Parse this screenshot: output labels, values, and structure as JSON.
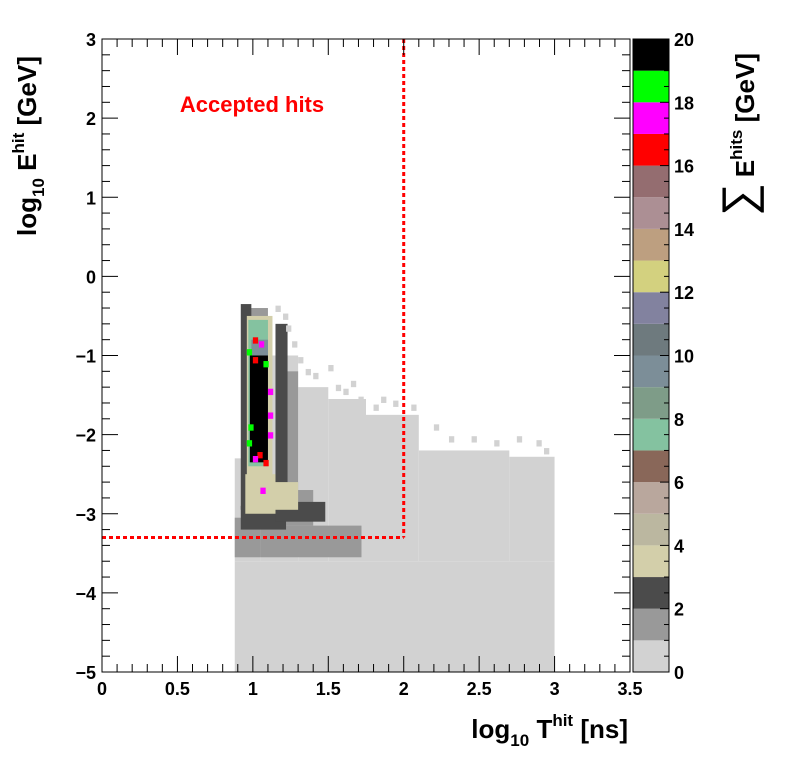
{
  "chart_data": {
    "type": "heatmap",
    "title": "",
    "annotation": "Accepted hits",
    "xlabel": {
      "base": "log",
      "sub": "10",
      "var": " T",
      "sup": "hit",
      "unit": " [ns]"
    },
    "ylabel": {
      "base": "log",
      "sub": "10",
      "var": " E",
      "sup": "hit",
      "unit": " [GeV]"
    },
    "zlabel": {
      "sym": "∑",
      "var": "E",
      "sup": "hits",
      "unit": " [GeV]"
    },
    "xlim": [
      0,
      3.5
    ],
    "ylim": [
      -5,
      3
    ],
    "zlim": [
      0,
      20
    ],
    "x_ticks": [
      "0",
      "0.5",
      "1",
      "1.5",
      "2",
      "2.5",
      "3",
      "3.5"
    ],
    "x_tick_values": [
      0,
      0.5,
      1,
      1.5,
      2,
      2.5,
      3,
      3.5
    ],
    "y_ticks": [
      "−5",
      "−4",
      "−3",
      "−2",
      "−1",
      "0",
      "1",
      "2",
      "3"
    ],
    "y_tick_values": [
      -5,
      -4,
      -3,
      -2,
      -1,
      0,
      1,
      2,
      3
    ],
    "z_ticks": [
      "0",
      "2",
      "4",
      "6",
      "8",
      "10",
      "12",
      "14",
      "16",
      "18",
      "20"
    ],
    "z_tick_values": [
      0,
      2,
      4,
      6,
      8,
      10,
      12,
      14,
      16,
      18,
      20
    ],
    "palette": [
      "#d2d2d2",
      "#999999",
      "#4b4b4b",
      "#d3cfaa",
      "#bbb7a0",
      "#b9a79d",
      "#896759",
      "#84c2a0",
      "#7e9c88",
      "#7c8e98",
      "#6e7a7e",
      "#82829f",
      "#d3d17f",
      "#bd9f80",
      "#ac8f94",
      "#946d70",
      "#ff0000",
      "#ff00ff",
      "#00ff00",
      "#000000"
    ],
    "acceptance_cut": {
      "t_max": 2.0,
      "e_min": -3.3,
      "color": "#ff0000"
    },
    "bin_width": {
      "x": 0.035,
      "y": 0.08
    },
    "blocks": [
      {
        "x": [
          0.88,
          3.0
        ],
        "y": [
          -5.0,
          -3.6
        ],
        "z": 0.4
      },
      {
        "x": [
          0.88,
          1.05
        ],
        "y": [
          -3.6,
          -2.3
        ],
        "z": 0.4
      },
      {
        "x": [
          1.05,
          1.3
        ],
        "y": [
          -3.6,
          -1.0
        ],
        "z": 0.4
      },
      {
        "x": [
          1.3,
          1.5
        ],
        "y": [
          -3.6,
          -1.4
        ],
        "z": 0.4
      },
      {
        "x": [
          1.5,
          1.75
        ],
        "y": [
          -3.6,
          -1.55
        ],
        "z": 0.4
      },
      {
        "x": [
          1.75,
          2.1
        ],
        "y": [
          -3.6,
          -1.75
        ],
        "z": 0.4
      },
      {
        "x": [
          2.1,
          2.7
        ],
        "y": [
          -3.6,
          -2.2
        ],
        "z": 0.4
      },
      {
        "x": [
          2.7,
          3.0
        ],
        "y": [
          -3.6,
          -2.28
        ],
        "z": 0.4
      },
      {
        "x": [
          0.88,
          1.05
        ],
        "y": [
          -3.55,
          -3.05
        ],
        "z": 1.4
      },
      {
        "x": [
          1.05,
          1.72
        ],
        "y": [
          -3.55,
          -3.15
        ],
        "z": 1.4
      },
      {
        "x": [
          1.2,
          1.4
        ],
        "y": [
          -3.15,
          -2.7
        ],
        "z": 1.4
      },
      {
        "x": [
          1.2,
          1.3
        ],
        "y": [
          -2.7,
          -1.2
        ],
        "z": 1.4
      },
      {
        "x": [
          0.95,
          1.1
        ],
        "y": [
          -0.95,
          -0.4
        ],
        "z": 1.4
      },
      {
        "x": [
          0.92,
          1.22
        ],
        "y": [
          -3.2,
          -2.9
        ],
        "z": 2.6
      },
      {
        "x": [
          1.15,
          1.48
        ],
        "y": [
          -3.1,
          -2.85
        ],
        "z": 2.6
      },
      {
        "x": [
          0.92,
          0.99
        ],
        "y": [
          -2.95,
          -0.35
        ],
        "z": 2.6
      },
      {
        "x": [
          1.15,
          1.23
        ],
        "y": [
          -2.7,
          -0.6
        ],
        "z": 2.6
      },
      {
        "x": [
          0.95,
          1.15
        ],
        "y": [
          -3.0,
          -2.5
        ],
        "z": 3.6
      },
      {
        "x": [
          1.1,
          1.3
        ],
        "y": [
          -2.95,
          -2.6
        ],
        "z": 3.6
      },
      {
        "x": [
          0.96,
          1.13
        ],
        "y": [
          -2.55,
          -0.5
        ],
        "z": 3.6
      },
      {
        "x": [
          0.97,
          1.1
        ],
        "y": [
          -2.4,
          -0.55
        ],
        "z": 7.4
      },
      {
        "x": [
          0.99,
          1.1
        ],
        "y": [
          -2.2,
          -0.8
        ],
        "z": 9.6
      },
      {
        "x": [
          1.02,
          1.09
        ],
        "y": [
          -2.0,
          -1.05
        ],
        "z": 13.2
      },
      {
        "x": [
          0.98,
          1.1
        ],
        "y": [
          -2.35,
          -1.0
        ],
        "z": 19.5
      }
    ],
    "hot_bins": [
      {
        "x": 1.0,
        "y": -0.85,
        "z": 16.5
      },
      {
        "x": 1.04,
        "y": -0.9,
        "z": 17.5
      },
      {
        "x": 0.96,
        "y": -1.0,
        "z": 18.5
      },
      {
        "x": 1.07,
        "y": -1.15,
        "z": 18.5
      },
      {
        "x": 1.0,
        "y": -1.1,
        "z": 16.5
      },
      {
        "x": 1.1,
        "y": -1.5,
        "z": 17.5
      },
      {
        "x": 1.1,
        "y": -1.8,
        "z": 17.5
      },
      {
        "x": 0.97,
        "y": -1.95,
        "z": 18.5
      },
      {
        "x": 1.03,
        "y": -2.3,
        "z": 16.5
      },
      {
        "x": 1.07,
        "y": -2.4,
        "z": 16.5
      },
      {
        "x": 1.0,
        "y": -2.35,
        "z": 17.5
      },
      {
        "x": 1.1,
        "y": -2.05,
        "z": 17.5
      },
      {
        "x": 0.96,
        "y": -2.15,
        "z": 18.5
      },
      {
        "x": 1.05,
        "y": -2.75,
        "z": 17.5
      }
    ],
    "scatter_bins": [
      [
        1.22,
        -0.7
      ],
      [
        1.26,
        -0.9
      ],
      [
        1.3,
        -1.1
      ],
      [
        1.35,
        -1.25
      ],
      [
        1.4,
        -1.3
      ],
      [
        1.5,
        -1.2
      ],
      [
        1.55,
        -1.45
      ],
      [
        1.6,
        -1.5
      ],
      [
        1.65,
        -1.4
      ],
      [
        1.7,
        -1.6
      ],
      [
        1.8,
        -1.7
      ],
      [
        1.85,
        -1.6
      ],
      [
        1.93,
        -1.65
      ],
      [
        2.05,
        -1.7
      ],
      [
        2.2,
        -1.95
      ],
      [
        2.3,
        -2.1
      ],
      [
        2.45,
        -2.1
      ],
      [
        2.6,
        -2.15
      ],
      [
        2.75,
        -2.1
      ],
      [
        2.88,
        -2.15
      ],
      [
        2.93,
        -2.25
      ],
      [
        1.2,
        -0.55
      ],
      [
        1.15,
        -0.45
      ]
    ]
  }
}
